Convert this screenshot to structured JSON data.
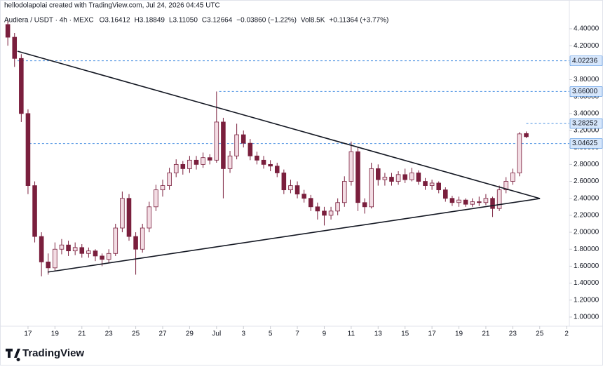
{
  "header_text": "hellodolapolai created with TradingView.com, Jul 24, 2026 04:45 UTC",
  "brand": "TradingView",
  "chart_data": {
    "type": "candlestick",
    "title": "Audiera / USDT · 4h · MEXC",
    "legend_items": [
      "O3.16412",
      "H3.18849",
      "L3.11050",
      "C3.12664",
      "−0.03860 (−1.22%)",
      "Vol8.5K",
      "+0.11364 (+3.77%)"
    ],
    "up_color": "#f3dde4",
    "down_color": "#7a1f3d",
    "level_color": "#4a90e2",
    "xlim": [
      14.92,
      57.2
    ],
    "xticks": [
      {
        "value": 17,
        "label": "17"
      },
      {
        "value": 19,
        "label": "19"
      },
      {
        "value": 21,
        "label": "21"
      },
      {
        "value": 23,
        "label": "23"
      },
      {
        "value": 25,
        "label": "25"
      },
      {
        "value": 27,
        "label": "27"
      },
      {
        "value": 29,
        "label": "29"
      },
      {
        "value": 31,
        "label": "Jul"
      },
      {
        "value": 33,
        "label": "3"
      },
      {
        "value": 35,
        "label": "5"
      },
      {
        "value": 37,
        "label": "7"
      },
      {
        "value": 39,
        "label": "9"
      },
      {
        "value": 41,
        "label": "11"
      },
      {
        "value": 43,
        "label": "13"
      },
      {
        "value": 45,
        "label": "15"
      },
      {
        "value": 47,
        "label": "17"
      },
      {
        "value": 49,
        "label": "19"
      },
      {
        "value": 51,
        "label": "21"
      },
      {
        "value": 53,
        "label": "23"
      },
      {
        "value": 55,
        "label": "25"
      },
      {
        "value": 57,
        "label": "2"
      }
    ],
    "ylim": [
      0.892,
      4.739
    ],
    "yticks": [
      {
        "value": 1,
        "label": "1.00000"
      },
      {
        "value": 1.2,
        "label": "1.20000"
      },
      {
        "value": 1.4,
        "label": "1.40000"
      },
      {
        "value": 1.6,
        "label": "1.60000"
      },
      {
        "value": 1.8,
        "label": "1.80000"
      },
      {
        "value": 2,
        "label": "2.00000"
      },
      {
        "value": 2.2,
        "label": "2.20000"
      },
      {
        "value": 2.4,
        "label": "2.40000"
      },
      {
        "value": 2.6,
        "label": "2.60000"
      },
      {
        "value": 2.8,
        "label": "2.80000"
      },
      {
        "value": 3,
        "label": "3.00000"
      },
      {
        "value": 3.2,
        "label": "3.20000"
      },
      {
        "value": 3.4,
        "label": "3.40000"
      },
      {
        "value": 3.6,
        "label": "3.60000"
      },
      {
        "value": 3.8,
        "label": "3.80000"
      },
      {
        "value": 4,
        "label": "4.00000"
      },
      {
        "value": 4.2,
        "label": "4.20000"
      },
      {
        "value": 4.4,
        "label": "4.40000"
      }
    ],
    "x": [
      15.5,
      16,
      16.5,
      17,
      17.5,
      18,
      18.5,
      19,
      19.5,
      20,
      20.5,
      21,
      21.5,
      22,
      22.5,
      23,
      23.5,
      24,
      24.5,
      25,
      25.5,
      26,
      26.5,
      27,
      27.5,
      28,
      28.5,
      29,
      29.5,
      30,
      30.5,
      31,
      31.5,
      32,
      32.5,
      33,
      33.5,
      34,
      34.5,
      35,
      35.5,
      36,
      36.5,
      37,
      37.5,
      38,
      38.5,
      39,
      39.5,
      40,
      40.5,
      41,
      41.5,
      42,
      42.5,
      43,
      43.5,
      44,
      44.5,
      45,
      45.5,
      46,
      46.5,
      47,
      47.5,
      48,
      48.5,
      49,
      49.5,
      50,
      50.5,
      51,
      51.5,
      52,
      52.5,
      53,
      53.5,
      54
    ],
    "ohlc": [
      [
        4.45,
        4.5,
        4.2,
        4.3
      ],
      [
        4.3,
        4.35,
        3.95,
        4.05
      ],
      [
        4.05,
        4.1,
        3.3,
        3.4
      ],
      [
        3.4,
        3.45,
        2.45,
        2.55
      ],
      [
        2.55,
        2.6,
        1.88,
        1.95
      ],
      [
        1.95,
        2.0,
        1.48,
        1.65
      ],
      [
        1.65,
        1.75,
        1.5,
        1.58
      ],
      [
        1.58,
        1.88,
        1.55,
        1.8
      ],
      [
        1.8,
        1.92,
        1.74,
        1.85
      ],
      [
        1.85,
        1.9,
        1.72,
        1.78
      ],
      [
        1.78,
        1.88,
        1.73,
        1.82
      ],
      [
        1.82,
        1.86,
        1.7,
        1.75
      ],
      [
        1.75,
        1.82,
        1.7,
        1.78
      ],
      [
        1.78,
        1.8,
        1.66,
        1.72
      ],
      [
        1.72,
        1.75,
        1.6,
        1.68
      ],
      [
        1.68,
        1.8,
        1.64,
        1.75
      ],
      [
        1.75,
        2.1,
        1.72,
        2.05
      ],
      [
        2.05,
        2.48,
        2.0,
        2.4
      ],
      [
        2.4,
        2.45,
        1.9,
        1.95
      ],
      [
        1.95,
        2.0,
        1.5,
        1.8
      ],
      [
        1.8,
        2.1,
        1.76,
        2.05
      ],
      [
        2.05,
        2.36,
        2.0,
        2.3
      ],
      [
        2.3,
        2.56,
        2.25,
        2.5
      ],
      [
        2.5,
        2.62,
        2.42,
        2.55
      ],
      [
        2.55,
        2.76,
        2.5,
        2.7
      ],
      [
        2.7,
        2.86,
        2.65,
        2.8
      ],
      [
        2.8,
        2.84,
        2.68,
        2.75
      ],
      [
        2.75,
        2.9,
        2.7,
        2.85
      ],
      [
        2.85,
        2.9,
        2.74,
        2.8
      ],
      [
        2.8,
        2.94,
        2.76,
        2.88
      ],
      [
        2.88,
        2.92,
        2.8,
        2.85
      ],
      [
        2.85,
        3.66,
        2.82,
        3.3
      ],
      [
        3.3,
        3.35,
        2.4,
        2.75
      ],
      [
        2.75,
        2.96,
        2.7,
        2.9
      ],
      [
        2.9,
        3.28,
        2.86,
        3.15
      ],
      [
        3.15,
        3.2,
        3.0,
        3.05
      ],
      [
        3.05,
        3.1,
        2.85,
        2.9
      ],
      [
        2.9,
        2.95,
        2.8,
        2.85
      ],
      [
        2.85,
        2.9,
        2.75,
        2.8
      ],
      [
        2.8,
        2.85,
        2.72,
        2.78
      ],
      [
        2.78,
        2.82,
        2.65,
        2.7
      ],
      [
        2.7,
        2.74,
        2.45,
        2.5
      ],
      [
        2.5,
        2.62,
        2.46,
        2.55
      ],
      [
        2.55,
        2.6,
        2.4,
        2.45
      ],
      [
        2.45,
        2.5,
        2.35,
        2.4
      ],
      [
        2.4,
        2.44,
        2.25,
        2.3
      ],
      [
        2.3,
        2.35,
        2.15,
        2.25
      ],
      [
        2.25,
        2.3,
        2.08,
        2.2
      ],
      [
        2.2,
        2.3,
        2.15,
        2.25
      ],
      [
        2.25,
        2.4,
        2.2,
        2.35
      ],
      [
        2.35,
        2.66,
        2.3,
        2.6
      ],
      [
        2.6,
        3.07,
        2.55,
        2.95
      ],
      [
        2.95,
        3.0,
        2.25,
        2.35
      ],
      [
        2.35,
        2.4,
        2.22,
        2.3
      ],
      [
        2.3,
        2.82,
        2.28,
        2.75
      ],
      [
        2.75,
        2.8,
        2.55,
        2.62
      ],
      [
        2.62,
        2.7,
        2.55,
        2.65
      ],
      [
        2.65,
        2.7,
        2.55,
        2.6
      ],
      [
        2.6,
        2.72,
        2.56,
        2.68
      ],
      [
        2.68,
        2.75,
        2.58,
        2.62
      ],
      [
        2.62,
        2.76,
        2.6,
        2.7
      ],
      [
        2.7,
        2.73,
        2.56,
        2.6
      ],
      [
        2.6,
        2.64,
        2.5,
        2.55
      ],
      [
        2.55,
        2.62,
        2.5,
        2.58
      ],
      [
        2.58,
        2.6,
        2.46,
        2.5
      ],
      [
        2.5,
        2.53,
        2.36,
        2.4
      ],
      [
        2.4,
        2.43,
        2.31,
        2.35
      ],
      [
        2.35,
        2.42,
        2.3,
        2.38
      ],
      [
        2.38,
        2.4,
        2.3,
        2.33
      ],
      [
        2.33,
        2.4,
        2.3,
        2.36
      ],
      [
        2.36,
        2.42,
        2.31,
        2.35
      ],
      [
        2.35,
        2.45,
        2.32,
        2.4
      ],
      [
        2.4,
        2.42,
        2.18,
        2.28
      ],
      [
        2.28,
        2.55,
        2.25,
        2.5
      ],
      [
        2.5,
        2.65,
        2.46,
        2.6
      ],
      [
        2.6,
        2.75,
        2.56,
        2.7
      ],
      [
        2.7,
        3.18,
        2.66,
        3.16
      ],
      [
        3.16412,
        3.18849,
        3.1105,
        3.12664
      ]
    ],
    "trendlines": [
      [
        [
          16.22,
          4.135
        ],
        [
          55.02,
          2.398
        ]
      ],
      [
        [
          18.46,
          1.53
        ],
        [
          55.02,
          2.398
        ]
      ]
    ],
    "levels": [
      {
        "value": 4.02236,
        "label": "4.02236",
        "from": 16.22
      },
      {
        "value": 3.66,
        "label": "3.66000",
        "from": 31.2
      },
      {
        "value": 3.28252,
        "label": "3.28252",
        "from": 54.0
      },
      {
        "value": 3.04625,
        "label": "3.04625",
        "from": 17.1
      }
    ]
  }
}
